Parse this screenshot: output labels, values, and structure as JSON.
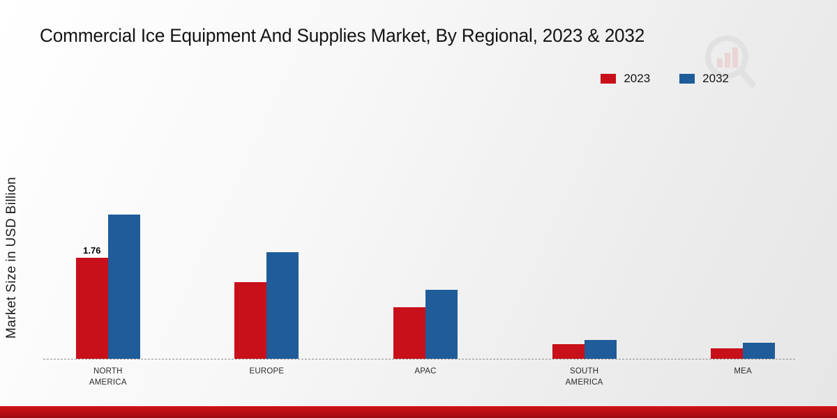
{
  "chart_data": {
    "type": "bar",
    "title": "Commercial Ice Equipment And Supplies Market, By Regional, 2023 & 2032",
    "ylabel": "Market Size in USD Billion",
    "categories": [
      "NORTH AMERICA",
      "EUROPE",
      "APAC",
      "SOUTH AMERICA",
      "MEA"
    ],
    "series": [
      {
        "name": "2023",
        "color": "#c8101a",
        "values": [
          1.76,
          1.33,
          0.9,
          0.25,
          0.18
        ]
      },
      {
        "name": "2032",
        "color": "#1f5c99",
        "values": [
          2.51,
          1.85,
          1.2,
          0.33,
          0.28
        ]
      }
    ],
    "labels": [
      {
        "series_index": 0,
        "category_index": 0,
        "text": "1.76"
      }
    ],
    "ylim": [
      0,
      2.8
    ],
    "grid": false,
    "legend_position": "top-right",
    "baseline_style": "dashed",
    "colors": {
      "series_2023": "#c8101a",
      "series_2032": "#1f5c99",
      "footer_band": "#b50e13"
    }
  }
}
